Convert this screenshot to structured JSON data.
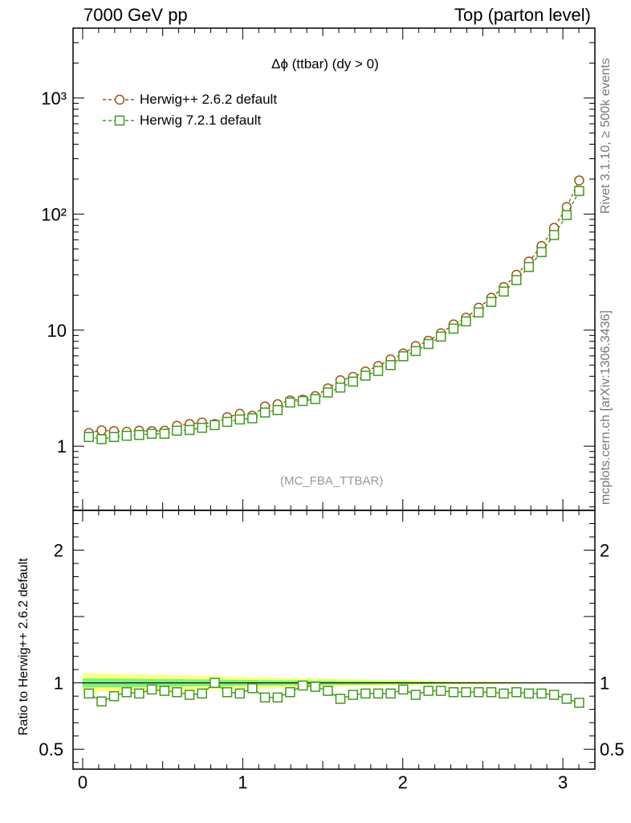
{
  "header": {
    "left": "7000 GeV pp",
    "right": "Top (parton level)"
  },
  "side": {
    "rivet": "Rivet 3.1.10, ≥ 500k events",
    "mcplots": "mcplots.cern.ch [arXiv:1306.3436]"
  },
  "caption": "(MC_FBA_TTBAR)",
  "chart_data": [
    {
      "type": "line",
      "title": "Δϕ (ttbar) (dy > 0)",
      "xlabel": "",
      "ylabel": "",
      "yscale": "log",
      "xlim": [
        -0.06,
        3.2
      ],
      "ylim": [
        0.28,
        4000
      ],
      "xticks": [
        "0",
        "1",
        "2",
        "3"
      ],
      "yticks": [
        "1",
        "10",
        "10²",
        "10³"
      ],
      "legend_position": "top-left",
      "x": [
        0.039,
        0.118,
        0.196,
        0.275,
        0.353,
        0.432,
        0.511,
        0.589,
        0.668,
        0.746,
        0.825,
        0.903,
        0.982,
        1.06,
        1.139,
        1.218,
        1.296,
        1.375,
        1.453,
        1.532,
        1.61,
        1.689,
        1.767,
        1.846,
        1.924,
        2.003,
        2.081,
        2.16,
        2.238,
        2.317,
        2.395,
        2.474,
        2.553,
        2.631,
        2.71,
        2.788,
        2.867,
        2.945,
        3.024,
        3.102
      ],
      "series": [
        {
          "name": "Herwig++ 2.6.2 default",
          "color": "#a0521c",
          "marker": "circle",
          "values": [
            1.3,
            1.37,
            1.35,
            1.33,
            1.36,
            1.35,
            1.36,
            1.5,
            1.55,
            1.6,
            1.55,
            1.78,
            1.9,
            1.83,
            2.2,
            2.3,
            2.48,
            2.52,
            2.7,
            3.15,
            3.7,
            3.95,
            4.4,
            4.9,
            5.6,
            6.3,
            7.3,
            8.1,
            9.4,
            11.2,
            12.8,
            15.6,
            19.0,
            23.5,
            30.0,
            39.0,
            53.0,
            76.0,
            115.0,
            195.0
          ]
        },
        {
          "name": "Herwig 7.2.1 default",
          "color": "#3f9a1a",
          "marker": "square",
          "values": [
            1.2,
            1.15,
            1.2,
            1.23,
            1.25,
            1.28,
            1.28,
            1.36,
            1.38,
            1.44,
            1.52,
            1.62,
            1.7,
            1.74,
            1.95,
            2.05,
            2.38,
            2.45,
            2.55,
            2.9,
            3.2,
            3.6,
            4.05,
            4.45,
            5.0,
            5.95,
            6.6,
            7.6,
            8.8,
            10.3,
            11.9,
            14.2,
            17.5,
            21.5,
            27.0,
            35.0,
            47.0,
            66.0,
            98.0,
            158.0
          ]
        }
      ]
    },
    {
      "type": "line",
      "title": "",
      "xlabel": "",
      "ylabel": "Ratio to Herwig++ 2.6.2 default",
      "xlim": [
        -0.06,
        3.2
      ],
      "ylim": [
        0.35,
        2.3
      ],
      "xticks": [
        "0",
        "1",
        "2",
        "3"
      ],
      "yticks": [
        "0.5",
        "1",
        "2"
      ],
      "reference": 1.0,
      "band_outer_color": "#ffff80",
      "band_inner_color": "#80f080",
      "band_outer_halfwidth": [
        0.07,
        0.068,
        0.066,
        0.064,
        0.062,
        0.06,
        0.058,
        0.056,
        0.054,
        0.052,
        0.05,
        0.048,
        0.046,
        0.044,
        0.042,
        0.04,
        0.038,
        0.036,
        0.034,
        0.032,
        0.03,
        0.028,
        0.026,
        0.024,
        0.022,
        0.02,
        0.018,
        0.016,
        0.014,
        0.012,
        0.011,
        0.01,
        0.009,
        0.008,
        0.007,
        0.006,
        0.005,
        0.004,
        0.003,
        0.002
      ],
      "band_inner_halfwidth": [
        0.035,
        0.034,
        0.033,
        0.032,
        0.031,
        0.03,
        0.029,
        0.028,
        0.027,
        0.026,
        0.025,
        0.024,
        0.023,
        0.022,
        0.021,
        0.02,
        0.019,
        0.018,
        0.017,
        0.016,
        0.015,
        0.014,
        0.013,
        0.012,
        0.011,
        0.01,
        0.009,
        0.008,
        0.007,
        0.006,
        0.005,
        0.005,
        0.004,
        0.004,
        0.003,
        0.003,
        0.002,
        0.002,
        0.002,
        0.001
      ],
      "series": [
        {
          "name": "Herwig 7.2.1 default",
          "color": "#3f9a1a",
          "marker": "square",
          "values": [
            0.92,
            0.86,
            0.9,
            0.93,
            0.92,
            0.95,
            0.94,
            0.93,
            0.91,
            0.92,
            1.0,
            0.93,
            0.92,
            0.96,
            0.89,
            0.89,
            0.93,
            0.98,
            0.97,
            0.94,
            0.88,
            0.91,
            0.92,
            0.92,
            0.92,
            0.95,
            0.91,
            0.94,
            0.94,
            0.93,
            0.93,
            0.93,
            0.93,
            0.92,
            0.93,
            0.92,
            0.92,
            0.91,
            0.88,
            0.85
          ]
        }
      ]
    }
  ]
}
